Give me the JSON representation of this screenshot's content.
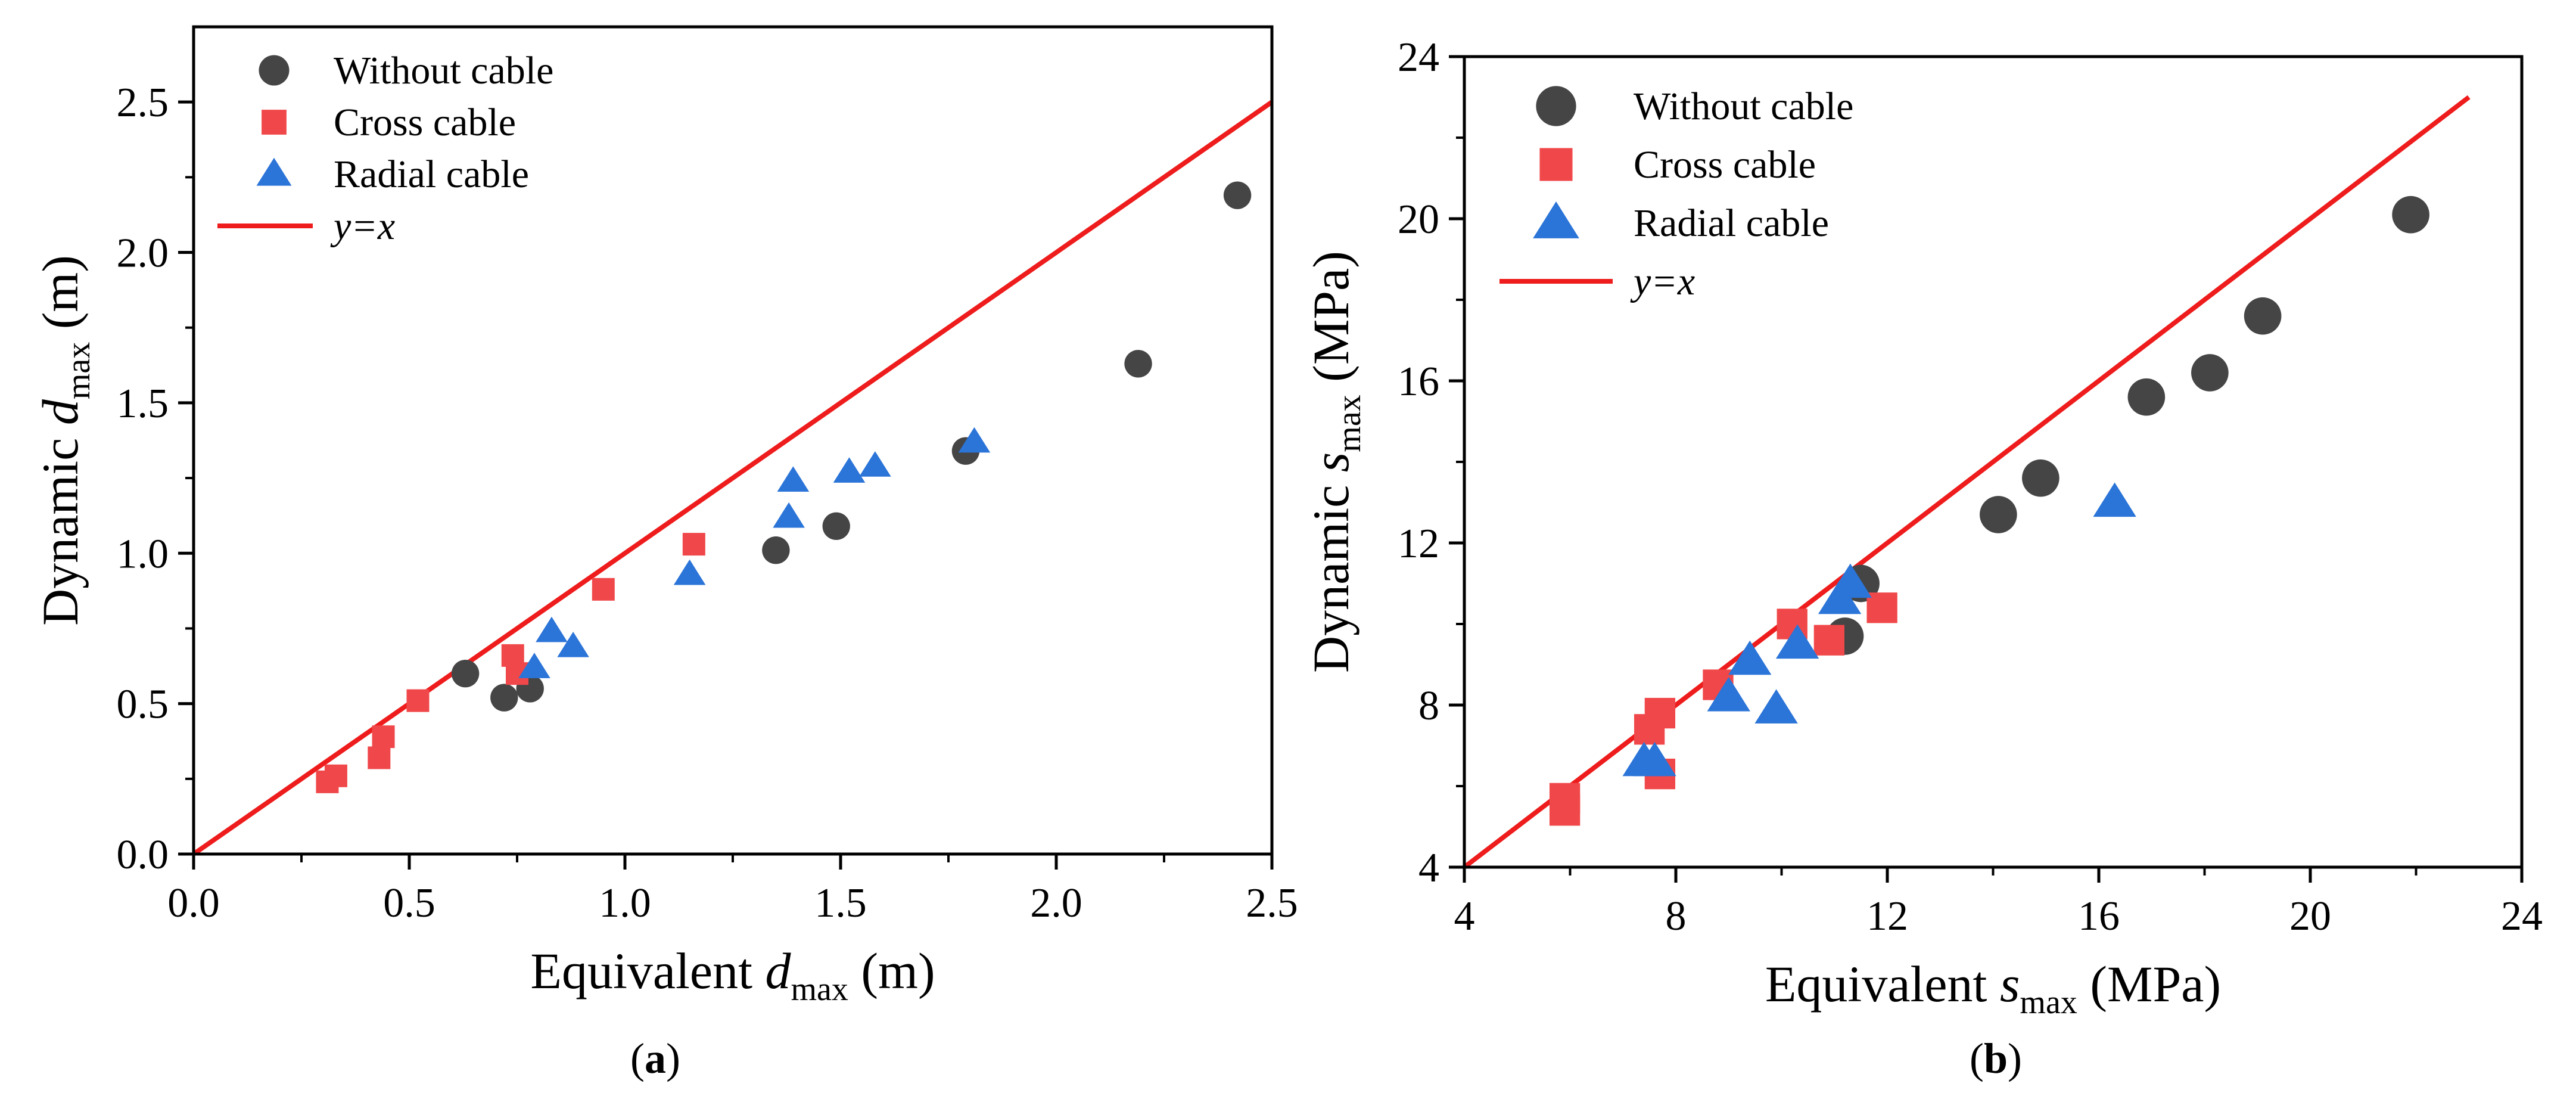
{
  "chart_data": [
    {
      "panel": "(a)",
      "panel_label": {
        "open": "(",
        "letter": "a",
        "close": ")"
      },
      "type": "scatter",
      "xlabel": {
        "prefix": "Equivalent ",
        "var": "d",
        "sub": "max",
        "suffix": " (m)"
      },
      "ylabel": {
        "prefix": "Dynamic ",
        "var": "d",
        "sub": "max",
        "suffix": " (m)"
      },
      "xlim": [
        0,
        2.5
      ],
      "ylim": [
        0,
        2.75
      ],
      "xticks": [
        0,
        0.5,
        1,
        1.5,
        2,
        2.5
      ],
      "xtick_labels": [
        "0.0",
        "0.5",
        "1.0",
        "1.5",
        "2.0",
        "2.5"
      ],
      "yticks": [
        0,
        0.5,
        1,
        1.5,
        2,
        2.5
      ],
      "ytick_labels": [
        "0.0",
        "0.5",
        "1.0",
        "1.5",
        "2.0",
        "2.5"
      ],
      "grid": false,
      "legend_position": "top-left",
      "series": [
        {
          "name": "Without cable",
          "marker": "circle",
          "color": "#454545",
          "points": [
            [
              0.63,
              0.6
            ],
            [
              0.72,
              0.52
            ],
            [
              0.78,
              0.55
            ],
            [
              1.35,
              1.01
            ],
            [
              1.49,
              1.09
            ],
            [
              1.79,
              1.34
            ],
            [
              2.19,
              1.63
            ],
            [
              2.42,
              2.19
            ]
          ]
        },
        {
          "name": "Cross cable",
          "marker": "square",
          "color": "#f0484a",
          "points": [
            [
              0.31,
              0.24
            ],
            [
              0.33,
              0.26
            ],
            [
              0.43,
              0.32
            ],
            [
              0.44,
              0.39
            ],
            [
              0.52,
              0.51
            ],
            [
              0.74,
              0.66
            ],
            [
              0.75,
              0.6
            ],
            [
              0.95,
              0.88
            ],
            [
              1.16,
              1.03
            ]
          ]
        },
        {
          "name": "Radial cable",
          "marker": "triangle",
          "color": "#2b74d8",
          "points": [
            [
              0.79,
              0.62
            ],
            [
              0.83,
              0.74
            ],
            [
              0.88,
              0.69
            ],
            [
              1.15,
              0.93
            ],
            [
              1.38,
              1.12
            ],
            [
              1.39,
              1.24
            ],
            [
              1.52,
              1.27
            ],
            [
              1.58,
              1.29
            ],
            [
              1.81,
              1.37
            ]
          ]
        }
      ],
      "reference_line": {
        "name": "y=x",
        "color": "#ee1c1c",
        "from": [
          0,
          0
        ],
        "to": [
          2.5,
          2.5
        ]
      }
    },
    {
      "panel": "(b)",
      "panel_label": {
        "open": "(",
        "letter": "b",
        "close": ")"
      },
      "type": "scatter",
      "xlabel": {
        "prefix": "Equivalent ",
        "var": "s",
        "sub": "max",
        "suffix": " (MPa)"
      },
      "ylabel": {
        "prefix": "Dynamic ",
        "var": "s",
        "sub": "max",
        "suffix": " (MPa)"
      },
      "xlim": [
        4,
        24
      ],
      "ylim": [
        4,
        24
      ],
      "xticks": [
        4,
        8,
        12,
        16,
        20,
        24
      ],
      "xtick_labels": [
        "4",
        "8",
        "12",
        "16",
        "20",
        "24"
      ],
      "yticks": [
        4,
        8,
        12,
        16,
        20,
        24
      ],
      "ytick_labels": [
        "4",
        "8",
        "12",
        "16",
        "20",
        "24"
      ],
      "grid": false,
      "legend_position": "top-left",
      "series": [
        {
          "name": "Without cable",
          "marker": "circle",
          "color": "#454545",
          "points": [
            [
              11.2,
              9.7
            ],
            [
              11.5,
              11.0
            ],
            [
              14.1,
              12.7
            ],
            [
              14.9,
              13.6
            ],
            [
              16.9,
              15.6
            ],
            [
              18.1,
              16.2
            ],
            [
              19.1,
              17.6
            ],
            [
              21.9,
              20.1
            ]
          ]
        },
        {
          "name": "Cross cable",
          "marker": "square",
          "color": "#f0484a",
          "points": [
            [
              5.9,
              5.4
            ],
            [
              5.9,
              5.7
            ],
            [
              7.5,
              7.4
            ],
            [
              7.7,
              6.3
            ],
            [
              7.7,
              7.8
            ],
            [
              8.8,
              8.5
            ],
            [
              10.2,
              10.0
            ],
            [
              10.9,
              9.6
            ],
            [
              11.9,
              10.4
            ]
          ]
        },
        {
          "name": "Radial cable",
          "marker": "triangle",
          "color": "#2b74d8",
          "points": [
            [
              7.4,
              6.6
            ],
            [
              7.6,
              6.6
            ],
            [
              9.0,
              8.2
            ],
            [
              9.4,
              9.1
            ],
            [
              9.9,
              7.9
            ],
            [
              10.3,
              9.5
            ],
            [
              11.1,
              10.6
            ],
            [
              11.3,
              11.0
            ],
            [
              16.3,
              13.0
            ]
          ]
        }
      ],
      "reference_line": {
        "name": "y=x",
        "color": "#ee1c1c",
        "from": [
          4,
          4
        ],
        "to": [
          23,
          23
        ]
      }
    }
  ]
}
